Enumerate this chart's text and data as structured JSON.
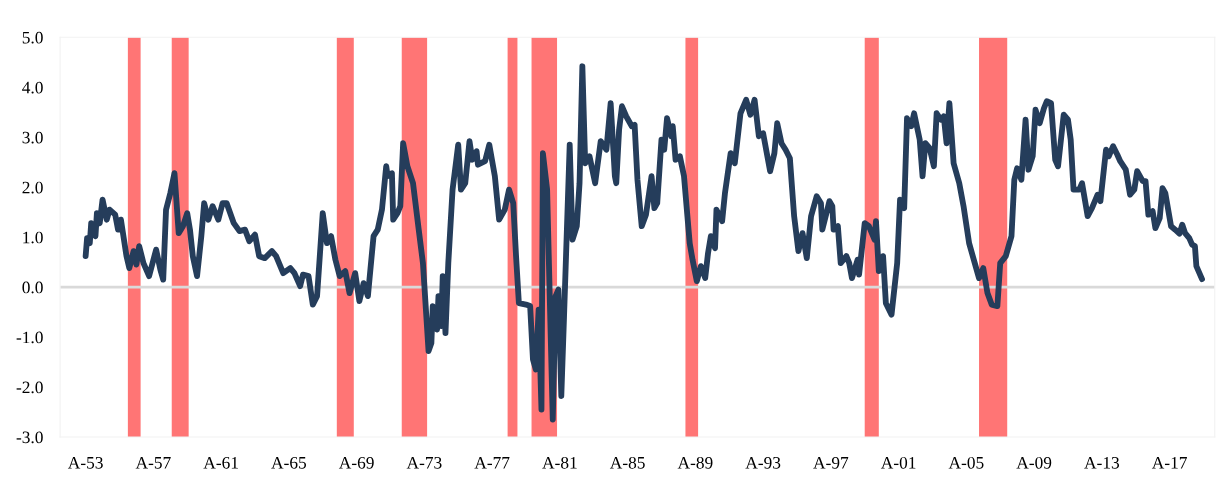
{
  "chart_data": {
    "type": "line",
    "x": [
      "1953-01",
      "1953-02",
      "1953-04",
      "1953-05",
      "1953-08",
      "1953-09",
      "1953-11",
      "1954-01",
      "1954-04",
      "1954-06",
      "1954-10",
      "1954-12",
      "1955-02",
      "1955-06",
      "1955-08",
      "1955-11",
      "1956-01",
      "1956-03",
      "1956-06",
      "1956-10",
      "1957-03",
      "1957-06",
      "1957-08",
      "1957-10",
      "1958-01",
      "1958-04",
      "1958-07",
      "1958-10",
      "1959-01",
      "1959-03",
      "1959-05",
      "1959-08",
      "1959-11",
      "1960-01",
      "1960-04",
      "1960-07",
      "1960-11",
      "1961-02",
      "1961-05",
      "1961-10",
      "1962-02",
      "1962-06",
      "1962-09",
      "1963-01",
      "1963-04",
      "1963-08",
      "1964-01",
      "1964-04",
      "1964-09",
      "1965-02",
      "1965-05",
      "1965-09",
      "1965-11",
      "1966-03",
      "1966-06",
      "1966-09",
      "1967-01",
      "1967-04",
      "1967-07",
      "1967-10",
      "1968-01",
      "1968-05",
      "1968-08",
      "1968-12",
      "1969-03",
      "1969-06",
      "1969-09",
      "1970-01",
      "1970-04",
      "1970-07",
      "1970-10",
      "1970-11",
      "1971-02",
      "1971-03",
      "1971-06",
      "1971-08",
      "1971-10",
      "1972-01",
      "1972-05",
      "1972-09",
      "1972-12",
      "1973-04",
      "1973-06",
      "1973-07",
      "1973-10",
      "1973-11",
      "1974-01",
      "1974-02",
      "1974-04",
      "1974-06",
      "1974-09",
      "1975-01",
      "1975-03",
      "1975-06",
      "1975-09",
      "1975-11",
      "1976-02",
      "1976-03",
      "1976-08",
      "1976-11",
      "1977-03",
      "1977-06",
      "1977-10",
      "1978-01",
      "1978-04",
      "1978-06",
      "1978-08",
      "1979-01",
      "1979-04",
      "1979-06",
      "1979-08",
      "1979-10",
      "1979-12",
      "1980-01",
      "1980-04",
      "1980-08",
      "1980-10",
      "1980-12",
      "1981-02",
      "1981-04",
      "1981-08",
      "1981-10",
      "1982-01",
      "1982-03",
      "1982-05",
      "1982-07",
      "1982-10",
      "1983-02",
      "1983-06",
      "1983-10",
      "1984-01",
      "1984-04",
      "1984-05",
      "1984-07",
      "1984-09",
      "1984-12",
      "1985-04",
      "1985-06",
      "1985-08",
      "1985-11",
      "1986-02",
      "1986-06",
      "1986-08",
      "1986-10",
      "1987-01",
      "1987-03",
      "1987-05",
      "1987-08",
      "1987-09",
      "1987-11",
      "1988-02",
      "1988-05",
      "1988-09",
      "1988-11",
      "1989-02",
      "1989-05",
      "1989-08",
      "1989-10",
      "1989-12",
      "1990-03",
      "1990-04",
      "1990-08",
      "1990-10",
      "1991-02",
      "1991-05",
      "1991-09",
      "1992-01",
      "1992-04",
      "1992-07",
      "1992-10",
      "1993-01",
      "1993-06",
      "1993-09",
      "1993-11",
      "1994-02",
      "1994-05",
      "1994-08",
      "1994-11",
      "1995-02",
      "1995-05",
      "1995-08",
      "1995-11",
      "1996-03",
      "1996-06",
      "1996-07",
      "1996-12",
      "1997-02",
      "1997-03",
      "1997-06",
      "1997-08",
      "1997-12",
      "1998-02",
      "1998-04",
      "1998-08",
      "1998-09",
      "1999-01",
      "1999-04",
      "1999-08",
      "1999-09",
      "1999-11",
      "2000-02",
      "2000-04",
      "2000-08",
      "2000-12",
      "2001-02",
      "2001-05",
      "2001-07",
      "2001-10",
      "2001-12",
      "2002-04",
      "2002-06",
      "2002-08",
      "2002-11",
      "2003-02",
      "2003-04",
      "2003-07",
      "2003-09",
      "2003-11",
      "2004-01",
      "2004-04",
      "2004-08",
      "2004-11",
      "2005-03",
      "2005-07",
      "2005-10",
      "2006-01",
      "2006-04",
      "2006-07",
      "2006-11",
      "2007-01",
      "2007-05",
      "2007-09",
      "2007-11",
      "2008-01",
      "2008-04",
      "2008-07",
      "2008-09",
      "2008-12",
      "2009-02",
      "2009-05",
      "2009-08",
      "2009-10",
      "2010-01",
      "2010-04",
      "2010-06",
      "2010-10",
      "2011-01",
      "2011-03",
      "2011-05",
      "2011-09",
      "2011-11",
      "2012-03",
      "2012-06",
      "2012-10",
      "2012-12",
      "2013-04",
      "2013-06",
      "2013-09",
      "2013-12",
      "2014-02",
      "2014-06",
      "2014-09",
      "2014-12",
      "2015-02",
      "2015-06",
      "2015-08",
      "2015-10",
      "2016-01",
      "2016-03",
      "2016-06",
      "2016-08",
      "2016-10",
      "2017-02",
      "2017-05",
      "2017-08",
      "2017-10",
      "2017-12",
      "2018-03",
      "2018-05",
      "2018-07",
      "2018-08",
      "2018-12"
    ],
    "series": [
      {
        "color": "#253d5b",
        "values": [
          0.62,
          0.98,
          0.88,
          1.28,
          1.02,
          1.48,
          1.28,
          1.75,
          1.35,
          1.55,
          1.45,
          1.15,
          1.35,
          0.62,
          0.38,
          0.72,
          0.45,
          0.82,
          0.48,
          0.22,
          0.75,
          0.35,
          0.15,
          1.55,
          1.88,
          2.28,
          1.08,
          1.22,
          1.48,
          1.15,
          0.62,
          0.22,
          1.02,
          1.68,
          1.35,
          1.62,
          1.35,
          1.68,
          1.68,
          1.28,
          1.12,
          1.15,
          0.92,
          1.05,
          0.62,
          0.58,
          0.72,
          0.62,
          0.28,
          0.38,
          0.28,
          0.02,
          0.25,
          0.22,
          -0.35,
          -0.18,
          1.48,
          0.88,
          1.02,
          0.55,
          0.22,
          0.32,
          -0.12,
          0.28,
          -0.28,
          0.08,
          -0.18,
          1.02,
          1.15,
          1.55,
          2.42,
          2.22,
          2.28,
          1.35,
          1.48,
          1.62,
          2.88,
          2.42,
          2.08,
          1.15,
          0.48,
          -1.28,
          -1.12,
          -0.38,
          -0.85,
          -0.18,
          -0.78,
          0.22,
          -0.92,
          0.48,
          1.95,
          2.85,
          1.95,
          2.08,
          2.92,
          2.55,
          2.72,
          2.45,
          2.52,
          2.85,
          2.22,
          1.35,
          1.55,
          1.95,
          1.68,
          0.62,
          -0.32,
          -0.35,
          -0.38,
          -1.45,
          -1.65,
          -0.45,
          -2.45,
          2.68,
          1.95,
          -2.65,
          -0.18,
          -0.05,
          -2.18,
          -0.58,
          2.85,
          0.95,
          1.22,
          2.08,
          4.42,
          2.48,
          2.62,
          2.08,
          2.92,
          2.75,
          3.68,
          2.22,
          2.08,
          3.15,
          3.62,
          3.42,
          3.22,
          3.25,
          2.15,
          1.22,
          1.45,
          2.22,
          1.58,
          1.68,
          2.95,
          2.75,
          3.38,
          3.02,
          3.22,
          2.55,
          2.62,
          2.22,
          0.88,
          0.55,
          0.12,
          0.42,
          0.18,
          0.68,
          1.02,
          0.78,
          1.55,
          1.32,
          1.88,
          2.68,
          2.48,
          3.48,
          3.75,
          3.45,
          3.75,
          3.02,
          3.08,
          2.32,
          2.68,
          3.28,
          2.88,
          2.75,
          2.58,
          1.42,
          0.72,
          1.08,
          0.58,
          1.42,
          1.82,
          1.68,
          1.15,
          1.72,
          1.62,
          1.15,
          1.22,
          0.48,
          0.62,
          0.48,
          0.18,
          0.55,
          0.25,
          1.28,
          1.22,
          0.95,
          1.32,
          0.32,
          0.62,
          -0.32,
          -0.55,
          0.48,
          1.75,
          1.58,
          3.38,
          3.22,
          3.48,
          2.95,
          2.22,
          2.88,
          2.78,
          2.42,
          3.48,
          3.35,
          3.42,
          2.88,
          3.68,
          2.48,
          2.08,
          1.62,
          0.88,
          0.48,
          0.18,
          0.38,
          -0.12,
          -0.35,
          -0.38,
          0.48,
          0.62,
          1.02,
          2.15,
          2.38,
          2.15,
          3.35,
          2.35,
          2.62,
          3.55,
          3.28,
          3.58,
          3.72,
          3.68,
          2.55,
          2.42,
          3.45,
          3.35,
          2.95,
          1.95,
          1.95,
          2.08,
          1.42,
          1.58,
          1.85,
          1.72,
          2.75,
          2.62,
          2.82,
          2.65,
          2.52,
          2.35,
          1.85,
          1.95,
          2.32,
          2.12,
          2.12,
          1.45,
          1.52,
          1.18,
          1.38,
          1.98,
          1.88,
          1.22,
          1.15,
          1.07,
          1.25,
          1.08,
          0.98,
          0.85,
          0.82,
          0.42,
          0.16
        ]
      }
    ],
    "xlim": [
      "1951-07",
      "2019-09"
    ],
    "xticks": [
      {
        "value": "1953-01",
        "label": "A-53"
      },
      {
        "value": "1957-01",
        "label": "A-57"
      },
      {
        "value": "1961-01",
        "label": "A-61"
      },
      {
        "value": "1965-01",
        "label": "A-65"
      },
      {
        "value": "1969-01",
        "label": "A-69"
      },
      {
        "value": "1973-01",
        "label": "A-73"
      },
      {
        "value": "1977-01",
        "label": "A-77"
      },
      {
        "value": "1981-01",
        "label": "A-81"
      },
      {
        "value": "1985-01",
        "label": "A-85"
      },
      {
        "value": "1989-01",
        "label": "A-89"
      },
      {
        "value": "1993-01",
        "label": "A-93"
      },
      {
        "value": "1997-01",
        "label": "A-97"
      },
      {
        "value": "2001-01",
        "label": "A-01"
      },
      {
        "value": "2005-01",
        "label": "A-05"
      },
      {
        "value": "2009-01",
        "label": "A-09"
      },
      {
        "value": "2013-01",
        "label": "A-13"
      },
      {
        "value": "2017-01",
        "label": "A-17"
      }
    ],
    "ylim": [
      -3,
      5
    ],
    "yticks": [
      {
        "value": -3,
        "label": "-3.0"
      },
      {
        "value": -2,
        "label": "-2.0"
      },
      {
        "value": -1,
        "label": "-1.0"
      },
      {
        "value": 0,
        "label": "0.0"
      },
      {
        "value": 1,
        "label": "1.0"
      },
      {
        "value": 2,
        "label": "2.0"
      },
      {
        "value": 3,
        "label": "3.0"
      },
      {
        "value": 4,
        "label": "4.0"
      },
      {
        "value": 5,
        "label": "5.0"
      }
    ],
    "ref_lines": [
      {
        "axis": "y",
        "value": 0,
        "color": "#d9d9d9"
      }
    ],
    "bands": [
      {
        "axis": "x",
        "from": "1955-07",
        "to": "1956-04",
        "color": "#ff6666"
      },
      {
        "axis": "x",
        "from": "1958-02",
        "to": "1959-02",
        "color": "#ff6666"
      },
      {
        "axis": "x",
        "from": "1967-11",
        "to": "1968-11",
        "color": "#ff6666"
      },
      {
        "axis": "x",
        "from": "1971-09",
        "to": "1973-03",
        "color": "#ff6666"
      },
      {
        "axis": "x",
        "from": "1977-12",
        "to": "1978-07",
        "color": "#ff6666"
      },
      {
        "axis": "x",
        "from": "1979-05",
        "to": "1980-11",
        "color": "#ff6666"
      },
      {
        "axis": "x",
        "from": "1988-06",
        "to": "1989-03",
        "color": "#ff6666"
      },
      {
        "axis": "x",
        "from": "1999-01",
        "to": "1999-11",
        "color": "#ff6666"
      },
      {
        "axis": "x",
        "from": "2005-10",
        "to": "2007-06",
        "color": "#ff6666"
      }
    ],
    "grid": false,
    "marker": "none",
    "line_style": "solid"
  }
}
